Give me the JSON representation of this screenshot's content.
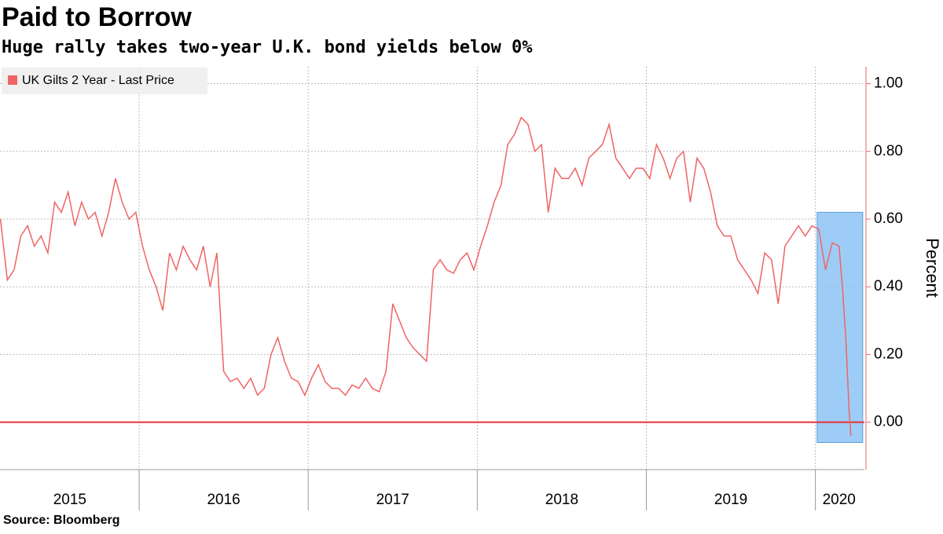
{
  "chart_data": {
    "type": "line",
    "title": "Paid to Borrow",
    "subtitle": "Huge rally takes two-year U.K. bond yields below 0%",
    "y_label": "Percent",
    "source": "Source: Bloomberg",
    "x": [
      2015.18,
      2015.22,
      2015.26,
      2015.3,
      2015.34,
      2015.38,
      2015.42,
      2015.46,
      2015.5,
      2015.54,
      2015.58,
      2015.62,
      2015.66,
      2015.7,
      2015.74,
      2015.78,
      2015.82,
      2015.86,
      2015.9,
      2015.94,
      2015.98,
      2016.02,
      2016.06,
      2016.1,
      2016.14,
      2016.18,
      2016.22,
      2016.26,
      2016.3,
      2016.34,
      2016.38,
      2016.42,
      2016.46,
      2016.5,
      2016.54,
      2016.58,
      2016.62,
      2016.66,
      2016.7,
      2016.74,
      2016.78,
      2016.82,
      2016.86,
      2016.9,
      2016.94,
      2016.98,
      2017.02,
      2017.06,
      2017.1,
      2017.14,
      2017.18,
      2017.22,
      2017.26,
      2017.3,
      2017.34,
      2017.38,
      2017.42,
      2017.46,
      2017.5,
      2017.54,
      2017.58,
      2017.62,
      2017.66,
      2017.7,
      2017.74,
      2017.78,
      2017.82,
      2017.86,
      2017.9,
      2017.94,
      2017.98,
      2018.02,
      2018.06,
      2018.1,
      2018.14,
      2018.18,
      2018.22,
      2018.26,
      2018.3,
      2018.34,
      2018.38,
      2018.42,
      2018.46,
      2018.5,
      2018.54,
      2018.58,
      2018.62,
      2018.66,
      2018.7,
      2018.74,
      2018.78,
      2018.82,
      2018.86,
      2018.9,
      2018.94,
      2018.98,
      2019.02,
      2019.06,
      2019.1,
      2019.14,
      2019.18,
      2019.22,
      2019.26,
      2019.3,
      2019.34,
      2019.38,
      2019.42,
      2019.46,
      2019.5,
      2019.54,
      2019.58,
      2019.62,
      2019.66,
      2019.7,
      2019.74,
      2019.78,
      2019.82,
      2019.86,
      2019.9,
      2019.94,
      2019.98,
      2020.02,
      2020.06,
      2020.1,
      2020.14,
      2020.16,
      2020.18,
      2020.2,
      2020.21
    ],
    "series": [
      {
        "name": "UK Gilts 2 Year - Last Price",
        "color": "#f06464",
        "values": [
          0.6,
          0.42,
          0.45,
          0.55,
          0.58,
          0.52,
          0.55,
          0.5,
          0.65,
          0.62,
          0.68,
          0.58,
          0.65,
          0.6,
          0.62,
          0.55,
          0.62,
          0.72,
          0.65,
          0.6,
          0.62,
          0.52,
          0.45,
          0.4,
          0.33,
          0.5,
          0.45,
          0.52,
          0.48,
          0.45,
          0.52,
          0.4,
          0.5,
          0.15,
          0.12,
          0.13,
          0.1,
          0.13,
          0.08,
          0.1,
          0.2,
          0.25,
          0.18,
          0.13,
          0.12,
          0.08,
          0.13,
          0.17,
          0.12,
          0.1,
          0.1,
          0.08,
          0.11,
          0.1,
          0.13,
          0.1,
          0.09,
          0.15,
          0.35,
          0.3,
          0.25,
          0.22,
          0.2,
          0.18,
          0.45,
          0.48,
          0.45,
          0.44,
          0.48,
          0.5,
          0.45,
          0.52,
          0.58,
          0.65,
          0.7,
          0.82,
          0.85,
          0.9,
          0.88,
          0.8,
          0.82,
          0.62,
          0.75,
          0.72,
          0.72,
          0.75,
          0.7,
          0.78,
          0.8,
          0.82,
          0.88,
          0.78,
          0.75,
          0.72,
          0.75,
          0.75,
          0.72,
          0.82,
          0.78,
          0.72,
          0.78,
          0.8,
          0.65,
          0.78,
          0.75,
          0.68,
          0.58,
          0.55,
          0.55,
          0.48,
          0.45,
          0.42,
          0.38,
          0.5,
          0.48,
          0.35,
          0.52,
          0.55,
          0.58,
          0.55,
          0.58,
          0.57,
          0.45,
          0.53,
          0.52,
          0.4,
          0.25,
          0.03,
          -0.04
        ]
      }
    ],
    "xlim": [
      2015.177,
      2020.29
    ],
    "xticks": [
      {
        "value": 2015.59,
        "label": "2015"
      },
      {
        "value": 2016.5,
        "label": "2016"
      },
      {
        "value": 2017.5,
        "label": "2017"
      },
      {
        "value": 2018.5,
        "label": "2018"
      },
      {
        "value": 2019.5,
        "label": "2019"
      },
      {
        "value": 2020.14,
        "label": "2020"
      }
    ],
    "xgrid": [
      2016,
      2017,
      2018,
      2019,
      2020
    ],
    "ylim": [
      -0.14,
      1.05
    ],
    "yticks": [
      {
        "value": 0,
        "label": "0.00"
      },
      {
        "value": 0.2,
        "label": "0.20"
      },
      {
        "value": 0.4,
        "label": "0.40"
      },
      {
        "value": 0.6,
        "label": "0.60"
      },
      {
        "value": 0.8,
        "label": "0.80"
      },
      {
        "value": 1,
        "label": "1.00"
      }
    ],
    "hline": 0,
    "hline_color": "#e8303a",
    "highlight": {
      "xlim": [
        2020.01,
        2020.28
      ],
      "ylim": [
        -0.06,
        0.62
      ],
      "color": "#8cc4f5"
    },
    "grid": true,
    "legend": "upper left"
  }
}
